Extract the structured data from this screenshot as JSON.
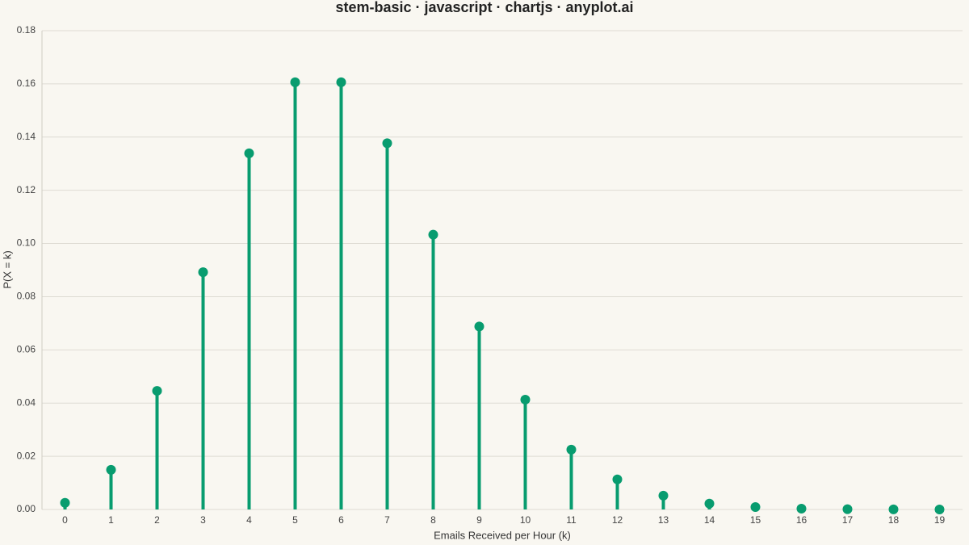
{
  "chart_data": {
    "type": "stem",
    "title": "stem-basic · javascript · chartjs · anyplot.ai",
    "x_label": "Emails Received per Hour (k)",
    "y_label": "P(X = k)",
    "categories": [
      "0",
      "1",
      "2",
      "3",
      "4",
      "5",
      "6",
      "7",
      "8",
      "9",
      "10",
      "11",
      "12",
      "13",
      "14",
      "15",
      "16",
      "17",
      "18",
      "19"
    ],
    "values": [
      0.0025,
      0.0149,
      0.0446,
      0.0892,
      0.1339,
      0.1606,
      0.1606,
      0.1377,
      0.1033,
      0.0688,
      0.0413,
      0.0225,
      0.0113,
      0.0052,
      0.0022,
      0.0009,
      0.0003,
      0.0001,
      4e-05,
      1e-05
    ],
    "color": "#089c6f",
    "ylim": [
      0,
      0.18
    ],
    "yticks": [
      {
        "value": 0,
        "label": "0.00"
      },
      0.02,
      0.04,
      0.06,
      0.08,
      {
        "value": 0.1,
        "label": "0.10"
      },
      0.12,
      0.14,
      0.16,
      0.18
    ],
    "grid": true
  }
}
